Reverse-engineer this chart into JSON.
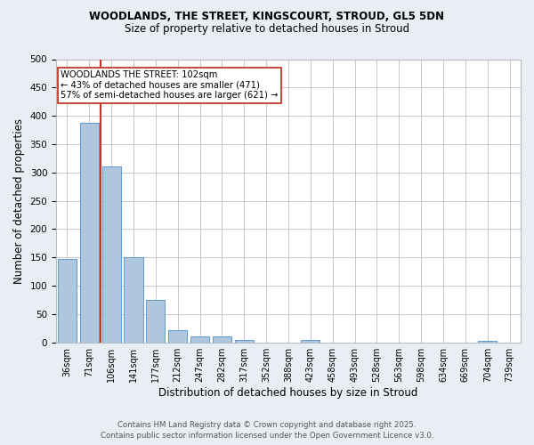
{
  "title1": "WOODLANDS, THE STREET, KINGSCOURT, STROUD, GL5 5DN",
  "title2": "Size of property relative to detached houses in Stroud",
  "xlabel": "Distribution of detached houses by size in Stroud",
  "ylabel": "Number of detached properties",
  "bar_labels": [
    "36sqm",
    "71sqm",
    "106sqm",
    "141sqm",
    "177sqm",
    "212sqm",
    "247sqm",
    "282sqm",
    "317sqm",
    "352sqm",
    "388sqm",
    "423sqm",
    "458sqm",
    "493sqm",
    "528sqm",
    "563sqm",
    "598sqm",
    "634sqm",
    "669sqm",
    "704sqm",
    "739sqm"
  ],
  "bar_values": [
    147,
    387,
    310,
    150,
    75,
    22,
    10,
    10,
    4,
    0,
    0,
    4,
    0,
    0,
    0,
    0,
    0,
    0,
    0,
    3,
    0
  ],
  "bar_color": "#aec6de",
  "bar_edge_color": "#5b9bd5",
  "vline_x": 1.5,
  "vline_color": "#c0392b",
  "annotation_text": "WOODLANDS THE STREET: 102sqm\n← 43% of detached houses are smaller (471)\n57% of semi-detached houses are larger (621) →",
  "annotation_box_color": "white",
  "annotation_edge_color": "#c0392b",
  "footer1": "Contains HM Land Registry data © Crown copyright and database right 2025.",
  "footer2": "Contains public sector information licensed under the Open Government Licence v3.0.",
  "bg_color": "#e8eef4",
  "plot_bg_color": "white",
  "grid_color": "#c8c8c8",
  "ylim": [
    0,
    500
  ],
  "yticks": [
    0,
    50,
    100,
    150,
    200,
    250,
    300,
    350,
    400,
    450,
    500
  ]
}
